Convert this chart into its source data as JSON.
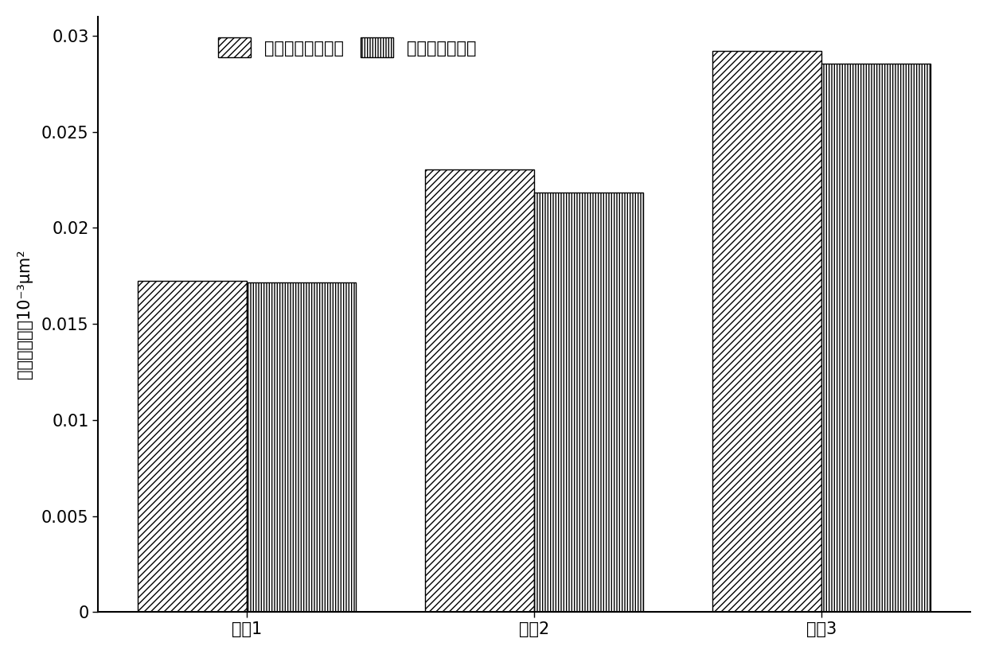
{
  "categories": [
    "岩标1",
    "岩标2",
    "岩标3"
  ],
  "series1_values": [
    0.01725,
    0.02305,
    0.0292
  ],
  "series2_values": [
    0.01715,
    0.02185,
    0.02855
  ],
  "series1_label": "本发明计算渗透率",
  "series2_label": "实验测得渗透率",
  "ylabel_line1": "表观渗透率",
  "ylabel_line2": "10⁻³μm²",
  "ylim": [
    0,
    0.031
  ],
  "yticks": [
    0,
    0.005,
    0.01,
    0.015,
    0.02,
    0.025,
    0.03
  ],
  "bar_width": 0.38,
  "background_color": "#ffffff",
  "bar_color": "white",
  "edge_color": "black",
  "legend_fontsize": 15,
  "tick_fontsize": 15,
  "label_fontsize": 15
}
